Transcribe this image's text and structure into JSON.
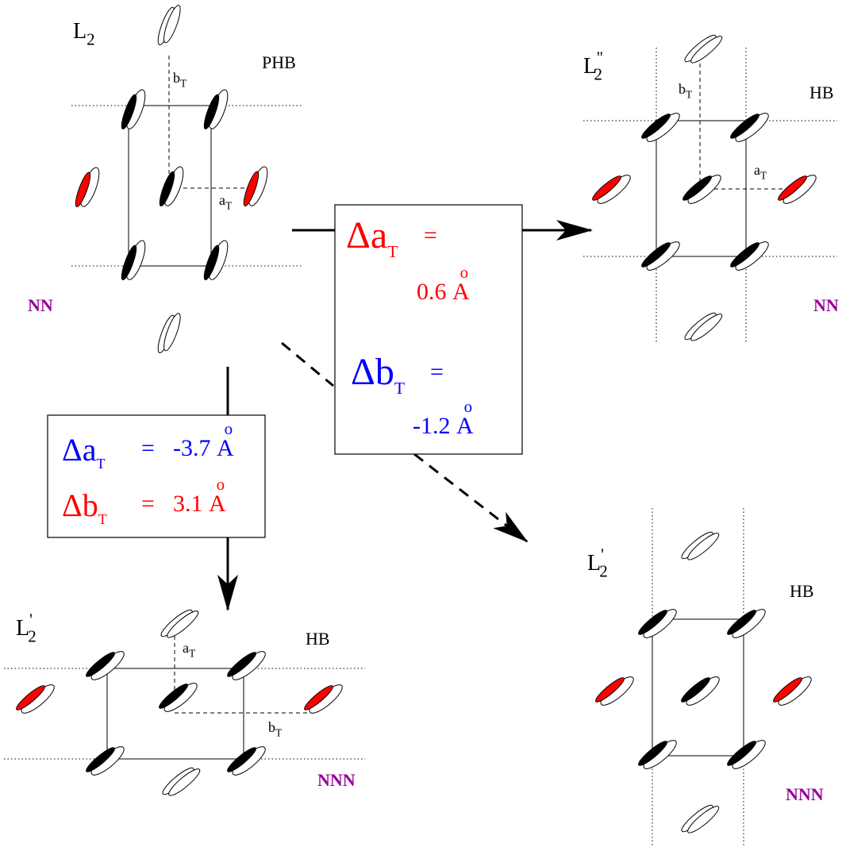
{
  "panels": [
    {
      "label": {
        "base": "L",
        "sub": "2"
      },
      "bond": "PHB",
      "neighbors": "NN",
      "a_label": {
        "base": "a",
        "sub": "T"
      },
      "b_label": {
        "base": "b",
        "sub": "T"
      }
    },
    {
      "label": {
        "base": "L",
        "sub": "2",
        "prime": "''"
      },
      "bond": "HB",
      "neighbors": "NN",
      "a_label": {
        "base": "a",
        "sub": "T"
      },
      "b_label": {
        "base": "b",
        "sub": "T"
      }
    },
    {
      "label": {
        "base": "L",
        "sub": "2",
        "prime": "'"
      },
      "bond": "HB",
      "neighbors": "NNN",
      "a_label": {
        "base": "a",
        "sub": "T"
      },
      "b_label": {
        "base": "b",
        "sub": "T"
      }
    },
    {
      "label": {
        "base": "L",
        "sub": "2",
        "prime": "'"
      },
      "bond": "HB",
      "neighbors": "NNN"
    }
  ],
  "boxes": [
    {
      "rows": [
        {
          "delta": "Δ",
          "var": "a",
          "sub": "T",
          "eq": "=",
          "value": 0.6,
          "unit": "A",
          "unit_sup": "o"
        },
        {
          "delta": "Δ",
          "var": "b",
          "sub": "T",
          "eq": "=",
          "value": -1.2,
          "unit": "A",
          "unit_sup": "o"
        }
      ]
    },
    {
      "rows": [
        {
          "delta": "Δ",
          "var": "a",
          "sub": "T",
          "eq": "=",
          "value": -3.7,
          "unit": "A",
          "unit_sup": "o"
        },
        {
          "delta": "Δ",
          "var": "b",
          "sub": "T",
          "eq": "=",
          "value": 3.1,
          "unit": "A",
          "unit_sup": "o"
        }
      ]
    }
  ]
}
